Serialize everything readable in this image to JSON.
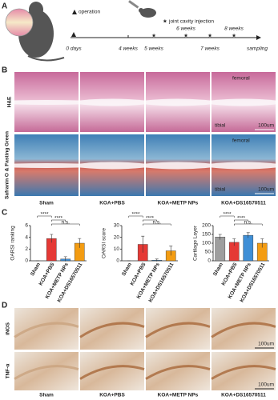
{
  "panel_labels": [
    "A",
    "B",
    "C",
    "D"
  ],
  "panel_a": {
    "operation_legend": "operation",
    "injection_legend": "joint cavity injection",
    "time_labels": [
      "0 days",
      "4 weeks",
      "5 weeks",
      "6 weeks",
      "7 weeks",
      "8 weeks"
    ],
    "end_label": "sampling"
  },
  "panel_b": {
    "rows": [
      "H&E",
      "Safranin O & Fasting Green"
    ],
    "columns": [
      "Sham",
      "KOA+PBS",
      "KOA+METP NPs",
      "KOA+DS16570511"
    ],
    "femoral_label": "femoral",
    "tibial_label": "tibial",
    "scale_bar": "100um"
  },
  "chart_data": [
    {
      "type": "bar",
      "y_label": "OARSI ranking",
      "categories": [
        "Sham",
        "KOA+PBS",
        "KOA+METP NPs",
        "KOA+DS16570511"
      ],
      "values": [
        0,
        3.8,
        0.3,
        3.0
      ],
      "errors": [
        0,
        0.7,
        0.4,
        0.8
      ],
      "colors": [
        "#9e9e9e",
        "#e53935",
        "#3f8fd6",
        "#f39c12"
      ],
      "ylim": [
        0,
        6
      ],
      "yticks": [
        0,
        2,
        4,
        6
      ],
      "significance": [
        "****",
        "****",
        "n.s."
      ]
    },
    {
      "type": "bar",
      "y_label": "OARSI score",
      "categories": [
        "Sham",
        "KOA+PBS",
        "KOA+METP NPs",
        "KOA+DS16570511"
      ],
      "values": [
        0,
        14,
        0.5,
        8.5
      ],
      "errors": [
        0,
        7,
        1,
        4
      ],
      "colors": [
        "#9e9e9e",
        "#e53935",
        "#3f8fd6",
        "#f39c12"
      ],
      "ylim": [
        0,
        30
      ],
      "yticks": [
        0,
        10,
        20,
        30
      ],
      "significance": [
        "****",
        "****",
        "n.s."
      ]
    },
    {
      "type": "bar",
      "y_label": "Cartilage Layer",
      "categories": [
        "Sham",
        "KOA+PBS",
        "KOA+METP NPs",
        "KOA+DS16570511"
      ],
      "values": [
        135,
        105,
        145,
        100
      ],
      "errors": [
        15,
        20,
        15,
        25
      ],
      "colors": [
        "#9e9e9e",
        "#e53935",
        "#3f8fd6",
        "#f39c12"
      ],
      "ylim": [
        0,
        200
      ],
      "yticks": [
        0,
        50,
        100,
        150,
        200
      ],
      "significance": [
        "****",
        "****",
        "n.s."
      ]
    }
  ],
  "panel_d": {
    "rows": [
      "iNOS",
      "TNF-α"
    ],
    "columns": [
      "Sham",
      "KOA+PBS",
      "KOA+METP NPs",
      "KOA+DS16570511"
    ],
    "scale_bar": "100um"
  }
}
